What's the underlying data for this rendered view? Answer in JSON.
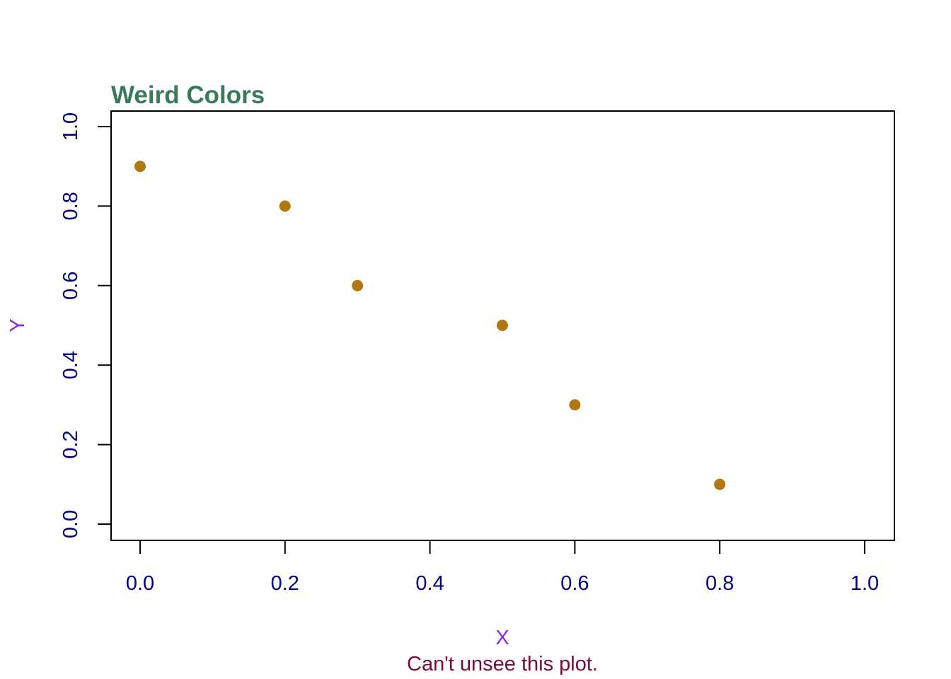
{
  "chart_data": {
    "type": "scatter",
    "title": "Weird Colors",
    "subtitle": "Can't unsee this plot.",
    "xlabel": "X",
    "ylabel": "Y",
    "xlim": [
      0,
      1
    ],
    "ylim": [
      0,
      1
    ],
    "xticks": [
      0.0,
      0.2,
      0.4,
      0.6,
      0.8,
      1.0
    ],
    "yticks": [
      0.0,
      0.2,
      0.4,
      0.6,
      0.8,
      1.0
    ],
    "xtick_labels": [
      "0.0",
      "0.2",
      "0.4",
      "0.6",
      "0.8",
      "1.0"
    ],
    "ytick_labels": [
      "0.0",
      "0.2",
      "0.4",
      "0.6",
      "0.8",
      "1.0"
    ],
    "points": [
      {
        "x": 0.0,
        "y": 0.9
      },
      {
        "x": 0.2,
        "y": 0.8
      },
      {
        "x": 0.3,
        "y": 0.6
      },
      {
        "x": 0.5,
        "y": 0.5
      },
      {
        "x": 0.6,
        "y": 0.3
      },
      {
        "x": 0.8,
        "y": 0.1
      }
    ],
    "grid": false,
    "colors": {
      "title": "#3a7a5c",
      "subtitle": "#7a0a3a",
      "axis_title": "#8a2be2",
      "tick_label": "#000080",
      "point": "#b07810",
      "axis": "#000000"
    }
  }
}
